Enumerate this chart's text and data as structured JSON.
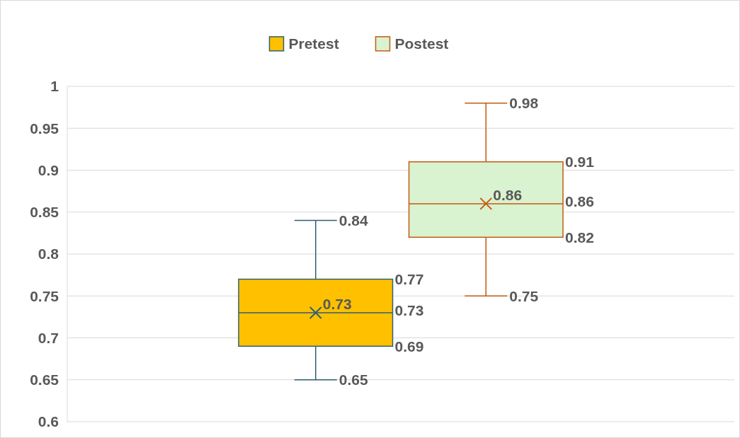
{
  "chart_data": {
    "type": "box",
    "categories": [
      null
    ],
    "series": [
      {
        "name": "Pretest",
        "color": "#ffc000",
        "boxes": [
          {
            "low": 0.65,
            "q1": 0.69,
            "median": 0.73,
            "q3": 0.77,
            "high": 0.84,
            "mean": 0.73
          }
        ]
      },
      {
        "name": "Postest",
        "color": "#d9f2d0",
        "boxes": [
          {
            "low": 0.75,
            "q1": 0.82,
            "median": 0.86,
            "q3": 0.91,
            "high": 0.98,
            "mean": 0.86
          }
        ]
      }
    ],
    "annotations": [
      "0.84",
      "0.77",
      "0.73",
      "0.69",
      "0.65",
      "0.73",
      "0.98",
      "0.91",
      "0.86",
      "0.82",
      "0.75",
      "0.86"
    ],
    "ylim": [
      0.6,
      1
    ],
    "yticks": [
      0.6,
      0.65,
      0.7,
      0.75,
      0.8,
      0.85,
      0.9,
      0.95,
      1
    ],
    "grid": "y",
    "legend": "top",
    "marker": "cross"
  }
}
